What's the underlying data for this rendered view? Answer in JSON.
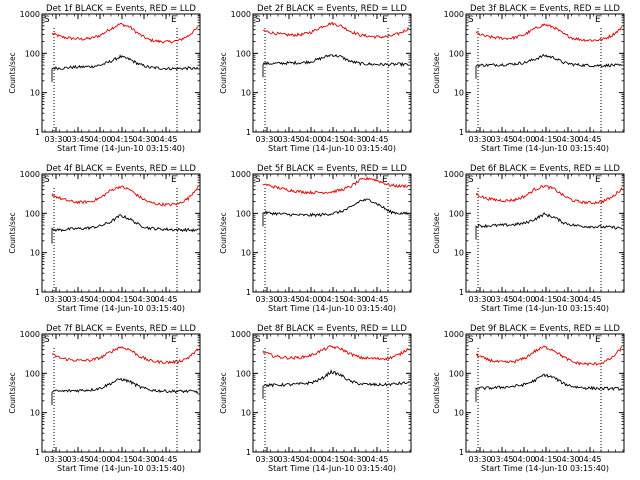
{
  "chart_data": [
    {
      "type": "line",
      "title": "Det 1f BLACK = Events, RED = LLD",
      "xlabel": "Start Time (14-Jun-10 03:15:40)",
      "ylabel": "Counts/sec",
      "yscale": "log",
      "ylim": [
        1,
        1000
      ],
      "xticks": [
        "03:30",
        "03:45",
        "04:00",
        "04:15",
        "04:30",
        "04:45"
      ],
      "yticks": [
        "1",
        "10",
        "100",
        "1000"
      ],
      "markers": [
        "S",
        "E"
      ],
      "series": [
        {
          "color": "#e00000",
          "values": [
            320,
            260,
            240,
            230,
            240,
            290,
            420,
            560,
            470,
            300,
            220,
            200,
            195,
            210,
            280,
            450
          ]
        },
        {
          "color": "#000000",
          "values": [
            42,
            42,
            44,
            45,
            46,
            50,
            62,
            82,
            70,
            52,
            44,
            42,
            41,
            41,
            42,
            40
          ]
        }
      ]
    },
    {
      "type": "line",
      "title": "Det 2f BLACK = Events, RED = LLD",
      "xlabel": "Start Time (14-Jun-10 03:15:40)",
      "ylabel": "Counts/sec",
      "yscale": "log",
      "ylim": [
        1,
        1000
      ],
      "xticks": [
        "03:30",
        "03:45",
        "04:00",
        "04:15",
        "04:30",
        "04:45"
      ],
      "yticks": [
        "1",
        "10",
        "100",
        "1000"
      ],
      "markers": [
        "S",
        "E"
      ],
      "series": [
        {
          "color": "#e00000",
          "values": [
            380,
            330,
            300,
            290,
            300,
            350,
            470,
            580,
            500,
            360,
            290,
            270,
            260,
            270,
            320,
            430
          ]
        },
        {
          "color": "#000000",
          "values": [
            55,
            55,
            56,
            57,
            58,
            62,
            75,
            92,
            82,
            62,
            55,
            53,
            52,
            52,
            53,
            51
          ]
        }
      ]
    },
    {
      "type": "line",
      "title": "Det 3f BLACK = Events, RED = LLD",
      "xlabel": "Start Time (14-Jun-10 03:15:40)",
      "ylabel": "Counts/sec",
      "yscale": "log",
      "ylim": [
        1,
        1000
      ],
      "xticks": [
        "03:30",
        "03:45",
        "04:00",
        "04:15",
        "04:30",
        "04:45"
      ],
      "yticks": [
        "1",
        "10",
        "100",
        "1000"
      ],
      "markers": [
        "S",
        "E"
      ],
      "series": [
        {
          "color": "#e00000",
          "values": [
            330,
            270,
            250,
            240,
            250,
            300,
            420,
            540,
            460,
            310,
            240,
            220,
            215,
            225,
            290,
            450
          ]
        },
        {
          "color": "#000000",
          "values": [
            50,
            50,
            51,
            52,
            54,
            58,
            70,
            88,
            78,
            58,
            52,
            50,
            49,
            49,
            50,
            48
          ]
        }
      ]
    },
    {
      "type": "line",
      "title": "Det 4f BLACK = Events, RED = LLD",
      "xlabel": "Start Time (14-Jun-10 03:15:40)",
      "ylabel": "Counts/sec",
      "yscale": "log",
      "ylim": [
        1,
        1000
      ],
      "xticks": [
        "03:30",
        "03:45",
        "04:00",
        "04:15",
        "04:30",
        "04:45"
      ],
      "yticks": [
        "1",
        "10",
        "100",
        "1000"
      ],
      "markers": [
        "S",
        "E"
      ],
      "series": [
        {
          "color": "#e00000",
          "values": [
            300,
            230,
            200,
            190,
            200,
            250,
            380,
            480,
            400,
            260,
            190,
            170,
            165,
            175,
            240,
            480
          ]
        },
        {
          "color": "#000000",
          "values": [
            38,
            38,
            40,
            41,
            43,
            48,
            60,
            88,
            72,
            50,
            42,
            40,
            39,
            38,
            38,
            36
          ]
        }
      ]
    },
    {
      "type": "line",
      "title": "Det 5f BLACK = Events, RED = LLD",
      "xlabel": "Start Time (14-Jun-10 03:15:40)",
      "ylabel": "Counts/sec",
      "yscale": "log",
      "ylim": [
        1,
        1000
      ],
      "xticks": [
        "03:30",
        "03:45",
        "04:00",
        "04:15",
        "04:30",
        "04:45"
      ],
      "yticks": [
        "1",
        "10",
        "100",
        "1000"
      ],
      "markers": [
        "S",
        "E"
      ],
      "series": [
        {
          "color": "#e00000",
          "values": [
            560,
            480,
            420,
            380,
            350,
            340,
            340,
            350,
            390,
            480,
            700,
            780,
            650,
            520,
            490,
            500
          ]
        },
        {
          "color": "#000000",
          "values": [
            105,
            100,
            96,
            92,
            90,
            90,
            92,
            98,
            110,
            140,
            210,
            220,
            160,
            110,
            100,
            98
          ]
        }
      ]
    },
    {
      "type": "line",
      "title": "Det 6f BLACK = Events, RED = LLD",
      "xlabel": "Start Time (14-Jun-10 03:15:40)",
      "ylabel": "Counts/sec",
      "yscale": "log",
      "ylim": [
        1,
        1000
      ],
      "xticks": [
        "03:30",
        "03:45",
        "04:00",
        "04:15",
        "04:30",
        "04:45"
      ],
      "yticks": [
        "1",
        "10",
        "100",
        "1000"
      ],
      "markers": [
        "S",
        "E"
      ],
      "series": [
        {
          "color": "#e00000",
          "values": [
            310,
            240,
            220,
            210,
            220,
            270,
            400,
            500,
            420,
            280,
            210,
            190,
            185,
            200,
            260,
            430
          ]
        },
        {
          "color": "#000000",
          "values": [
            48,
            48,
            49,
            50,
            52,
            56,
            70,
            95,
            80,
            58,
            50,
            47,
            46,
            45,
            44,
            42
          ]
        }
      ]
    },
    {
      "type": "line",
      "title": "Det 7f BLACK = Events, RED = LLD",
      "xlabel": "Start Time (14-Jun-10 03:15:40)",
      "ylabel": "Counts/sec",
      "yscale": "log",
      "ylim": [
        1,
        1000
      ],
      "xticks": [
        "03:30",
        "03:45",
        "04:00",
        "04:15",
        "04:30",
        "04:45"
      ],
      "yticks": [
        "1",
        "10",
        "100",
        "1000"
      ],
      "markers": [
        "S",
        "E"
      ],
      "series": [
        {
          "color": "#e00000",
          "values": [
            300,
            240,
            220,
            210,
            215,
            250,
            350,
            470,
            400,
            270,
            210,
            195,
            190,
            200,
            250,
            400
          ]
        },
        {
          "color": "#000000",
          "values": [
            35,
            35,
            36,
            37,
            38,
            42,
            55,
            72,
            62,
            45,
            38,
            36,
            35,
            35,
            35,
            34
          ]
        }
      ]
    },
    {
      "type": "line",
      "title": "Det 8f BLACK = Events, RED = LLD",
      "xlabel": "Start Time (14-Jun-10 03:15:40)",
      "ylabel": "Counts/sec",
      "yscale": "log",
      "ylim": [
        1,
        1000
      ],
      "xticks": [
        "03:30",
        "03:45",
        "04:00",
        "04:15",
        "04:30",
        "04:45"
      ],
      "yticks": [
        "1",
        "10",
        "100",
        "1000"
      ],
      "markers": [
        "S",
        "E"
      ],
      "series": [
        {
          "color": "#e00000",
          "values": [
            350,
            280,
            255,
            245,
            255,
            290,
            380,
            480,
            420,
            310,
            250,
            240,
            235,
            245,
            300,
            440
          ]
        },
        {
          "color": "#000000",
          "values": [
            50,
            50,
            51,
            52,
            54,
            58,
            72,
            110,
            90,
            62,
            54,
            52,
            51,
            52,
            55,
            58
          ]
        }
      ]
    },
    {
      "type": "line",
      "title": "Det 9f BLACK = Events, RED = LLD",
      "xlabel": "Start Time (14-Jun-10 03:15:40)",
      "ylabel": "Counts/sec",
      "yscale": "log",
      "ylim": [
        1,
        1000
      ],
      "xticks": [
        "03:30",
        "03:45",
        "04:00",
        "04:15",
        "04:30",
        "04:45"
      ],
      "yticks": [
        "1",
        "10",
        "100",
        "1000"
      ],
      "markers": [
        "S",
        "E"
      ],
      "series": [
        {
          "color": "#e00000",
          "values": [
            300,
            230,
            200,
            190,
            200,
            240,
            360,
            470,
            390,
            260,
            190,
            175,
            170,
            185,
            250,
            450
          ]
        },
        {
          "color": "#000000",
          "values": [
            42,
            42,
            43,
            45,
            47,
            52,
            65,
            92,
            78,
            55,
            46,
            43,
            42,
            41,
            41,
            40
          ]
        }
      ]
    }
  ]
}
